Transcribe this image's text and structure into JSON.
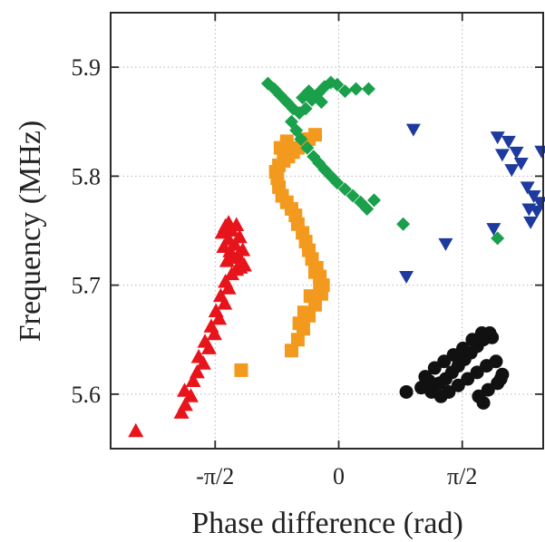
{
  "chart_data": {
    "type": "scatter",
    "title": "",
    "xlabel": "Phase difference (rad)",
    "ylabel": "Frequency (MHz)",
    "xlim": [
      -2.9,
      2.6
    ],
    "ylim": [
      5.55,
      5.95
    ],
    "x_ticks": [
      {
        "value": -1.5708,
        "label": "-π/2"
      },
      {
        "value": 0,
        "label": "0"
      },
      {
        "value": 1.5708,
        "label": "π/2"
      }
    ],
    "y_ticks": [
      {
        "value": 5.6,
        "label": "5.6"
      },
      {
        "value": 5.7,
        "label": "5.7"
      },
      {
        "value": 5.8,
        "label": "5.8"
      },
      {
        "value": 5.9,
        "label": "5.9"
      }
    ],
    "grid": true,
    "legend": false,
    "series": [
      {
        "marker": "triangle-up",
        "color": "#e8141c",
        "points": [
          [
            -2.58,
            5.566
          ],
          [
            -2.0,
            5.583
          ],
          [
            -1.95,
            5.59
          ],
          [
            -1.88,
            5.598
          ],
          [
            -1.96,
            5.603
          ],
          [
            -1.85,
            5.612
          ],
          [
            -1.8,
            5.62
          ],
          [
            -1.72,
            5.628
          ],
          [
            -1.78,
            5.634
          ],
          [
            -1.65,
            5.642
          ],
          [
            -1.7,
            5.648
          ],
          [
            -1.58,
            5.655
          ],
          [
            -1.62,
            5.662
          ],
          [
            -1.52,
            5.669
          ],
          [
            -1.56,
            5.676
          ],
          [
            -1.45,
            5.683
          ],
          [
            -1.5,
            5.69
          ],
          [
            -1.4,
            5.697
          ],
          [
            -1.44,
            5.703
          ],
          [
            -1.36,
            5.71
          ],
          [
            -1.3,
            5.714
          ],
          [
            -1.25,
            5.716
          ],
          [
            -1.2,
            5.718
          ],
          [
            -1.42,
            5.722
          ],
          [
            -1.34,
            5.725
          ],
          [
            -1.28,
            5.727
          ],
          [
            -1.38,
            5.731
          ],
          [
            -1.22,
            5.732
          ],
          [
            -1.46,
            5.735
          ],
          [
            -1.32,
            5.737
          ],
          [
            -1.4,
            5.742
          ],
          [
            -1.26,
            5.744
          ],
          [
            -1.48,
            5.748
          ],
          [
            -1.36,
            5.75
          ],
          [
            -1.44,
            5.754
          ],
          [
            -1.3,
            5.755
          ],
          [
            -1.4,
            5.757
          ]
        ]
      },
      {
        "marker": "square",
        "color": "#f39a1e",
        "points": [
          [
            -1.24,
            5.622
          ],
          [
            -0.6,
            5.64
          ],
          [
            -0.52,
            5.65
          ],
          [
            -0.45,
            5.66
          ],
          [
            -0.38,
            5.672
          ],
          [
            -0.3,
            5.682
          ],
          [
            -0.22,
            5.692
          ],
          [
            -0.2,
            5.7
          ],
          [
            -0.24,
            5.708
          ],
          [
            -0.28,
            5.716
          ],
          [
            -0.34,
            5.724
          ],
          [
            -0.38,
            5.732
          ],
          [
            -0.42,
            5.74
          ],
          [
            -0.46,
            5.748
          ],
          [
            -0.52,
            5.756
          ],
          [
            -0.55,
            5.764
          ],
          [
            -0.6,
            5.77
          ],
          [
            -0.66,
            5.776
          ],
          [
            -0.72,
            5.782
          ],
          [
            -0.76,
            5.79
          ],
          [
            -0.78,
            5.798
          ],
          [
            -0.8,
            5.804
          ],
          [
            -0.76,
            5.81
          ],
          [
            -0.7,
            5.814
          ],
          [
            -0.64,
            5.818
          ],
          [
            -0.58,
            5.822
          ],
          [
            -0.52,
            5.826
          ],
          [
            -0.46,
            5.83
          ],
          [
            -0.38,
            5.834
          ],
          [
            -0.3,
            5.838
          ],
          [
            -0.74,
            5.826
          ],
          [
            -0.66,
            5.832
          ],
          [
            -0.24,
            5.7
          ],
          [
            -0.3,
            5.712
          ],
          [
            -0.36,
            5.69
          ],
          [
            -0.44,
            5.675
          ],
          [
            -0.5,
            5.665
          ]
        ]
      },
      {
        "marker": "diamond",
        "color": "#1aa04b",
        "points": [
          [
            -0.9,
            5.885
          ],
          [
            -0.82,
            5.88
          ],
          [
            -0.74,
            5.874
          ],
          [
            -0.66,
            5.868
          ],
          [
            -0.58,
            5.862
          ],
          [
            -0.5,
            5.858
          ],
          [
            -0.42,
            5.862
          ],
          [
            -0.34,
            5.87
          ],
          [
            -0.26,
            5.876
          ],
          [
            -0.18,
            5.882
          ],
          [
            -0.1,
            5.886
          ],
          [
            -0.02,
            5.884
          ],
          [
            0.08,
            5.878
          ],
          [
            0.22,
            5.88
          ],
          [
            0.38,
            5.88
          ],
          [
            -0.46,
            5.872
          ],
          [
            -0.38,
            5.878
          ],
          [
            -0.22,
            5.868
          ],
          [
            -0.6,
            5.85
          ],
          [
            -0.54,
            5.842
          ],
          [
            -0.48,
            5.834
          ],
          [
            -0.4,
            5.826
          ],
          [
            -0.32,
            5.818
          ],
          [
            -0.25,
            5.812
          ],
          [
            -0.18,
            5.806
          ],
          [
            -0.1,
            5.8
          ],
          [
            -0.02,
            5.794
          ],
          [
            0.08,
            5.788
          ],
          [
            0.18,
            5.782
          ],
          [
            0.28,
            5.776
          ],
          [
            0.36,
            5.77
          ],
          [
            0.45,
            5.778
          ],
          [
            0.82,
            5.756
          ],
          [
            2.02,
            5.743
          ]
        ]
      },
      {
        "marker": "triangle-down",
        "color": "#1e3a9e",
        "points": [
          [
            0.95,
            5.843
          ],
          [
            0.86,
            5.708
          ],
          [
            1.36,
            5.738
          ],
          [
            1.97,
            5.752
          ],
          [
            2.02,
            5.836
          ],
          [
            2.16,
            5.832
          ],
          [
            2.08,
            5.82
          ],
          [
            2.26,
            5.822
          ],
          [
            2.2,
            5.806
          ],
          [
            2.32,
            5.812
          ],
          [
            2.4,
            5.79
          ],
          [
            2.48,
            5.782
          ],
          [
            2.52,
            5.768
          ],
          [
            2.42,
            5.77
          ],
          [
            2.44,
            5.758
          ],
          [
            2.56,
            5.776
          ],
          [
            2.58,
            5.823
          ]
        ]
      },
      {
        "marker": "circle",
        "color": "#111111",
        "points": [
          [
            0.86,
            5.602
          ],
          [
            1.05,
            5.606
          ],
          [
            1.18,
            5.602
          ],
          [
            1.28,
            5.61
          ],
          [
            1.36,
            5.614
          ],
          [
            1.44,
            5.62
          ],
          [
            1.52,
            5.626
          ],
          [
            1.6,
            5.632
          ],
          [
            1.68,
            5.638
          ],
          [
            1.76,
            5.644
          ],
          [
            1.84,
            5.65
          ],
          [
            1.92,
            5.656
          ],
          [
            1.1,
            5.616
          ],
          [
            1.22,
            5.624
          ],
          [
            1.34,
            5.63
          ],
          [
            1.46,
            5.636
          ],
          [
            1.58,
            5.642
          ],
          [
            1.7,
            5.65
          ],
          [
            1.82,
            5.656
          ],
          [
            1.95,
            5.652
          ],
          [
            1.4,
            5.602
          ],
          [
            1.52,
            5.608
          ],
          [
            1.64,
            5.614
          ],
          [
            1.76,
            5.62
          ],
          [
            1.88,
            5.626
          ],
          [
            2.0,
            5.63
          ],
          [
            2.08,
            5.618
          ],
          [
            2.02,
            5.61
          ],
          [
            1.9,
            5.604
          ],
          [
            1.78,
            5.598
          ],
          [
            1.84,
            5.592
          ],
          [
            2.06,
            5.614
          ],
          [
            1.3,
            5.598
          ],
          [
            1.15,
            5.612
          ]
        ]
      }
    ]
  }
}
